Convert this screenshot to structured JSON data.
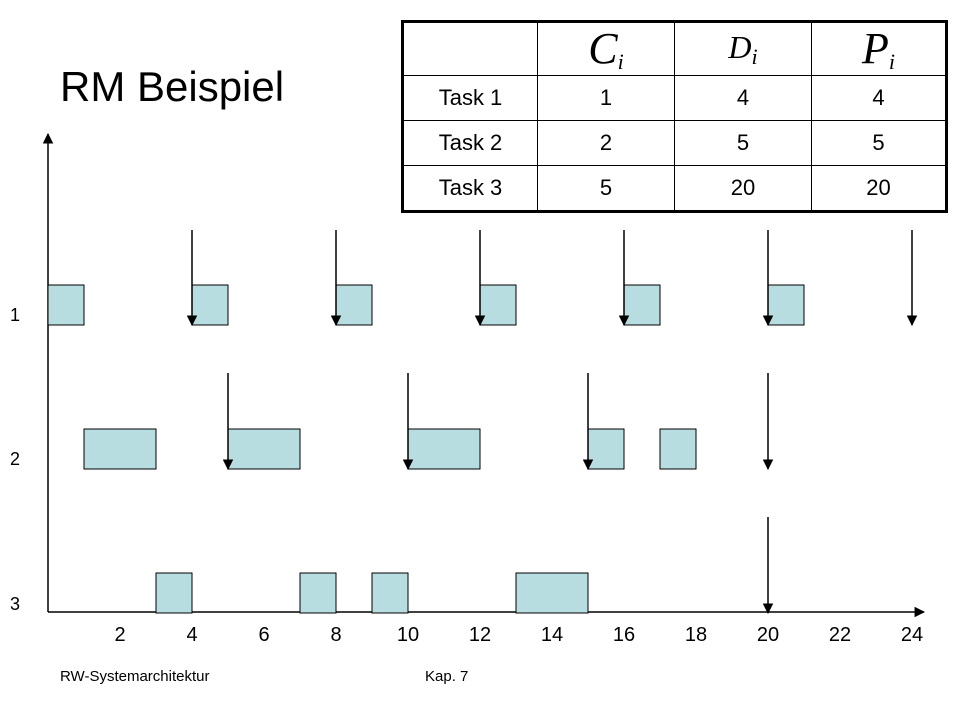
{
  "title": "RM Beispiel",
  "table": {
    "headers": [
      {
        "sym": "C",
        "sub": "i"
      },
      {
        "sym": "D",
        "sub": "i"
      },
      {
        "sym": "P",
        "sub": "i"
      }
    ],
    "rows": [
      {
        "name": "Task 1",
        "c": "1",
        "d": "4",
        "p": "4"
      },
      {
        "name": "Task 2",
        "c": "2",
        "d": "5",
        "p": "5"
      },
      {
        "name": "Task 3",
        "c": "5",
        "d": "20",
        "p": "20"
      }
    ]
  },
  "timeline": {
    "x_ticks": [
      "2",
      "4",
      "6",
      "8",
      "10",
      "12",
      "14",
      "16",
      "18",
      "20",
      "22",
      "24"
    ],
    "task_labels": [
      "1",
      "2",
      "3"
    ],
    "colors": {
      "block_fill": "#b8dde0",
      "stroke": "#000000"
    },
    "tasks": [
      {
        "label": "1",
        "blocks": [
          [
            0,
            1
          ],
          [
            4,
            5
          ],
          [
            8,
            9
          ],
          [
            12,
            13
          ],
          [
            16,
            17
          ],
          [
            20,
            21
          ]
        ],
        "arrows": [
          4,
          8,
          12,
          16,
          20,
          24
        ]
      },
      {
        "label": "2",
        "blocks": [
          [
            1,
            3
          ],
          [
            5,
            7
          ],
          [
            10,
            12
          ],
          [
            15,
            16
          ],
          [
            17,
            18
          ]
        ],
        "arrows": [
          5,
          10,
          15,
          20
        ]
      },
      {
        "label": "3",
        "blocks": [
          [
            3,
            4
          ],
          [
            7,
            8
          ],
          [
            9,
            10
          ],
          [
            13,
            15
          ]
        ],
        "arrows": [
          20
        ]
      }
    ]
  },
  "footer": {
    "left": "RW-Systemarchitektur",
    "center": "Kap. 7"
  }
}
